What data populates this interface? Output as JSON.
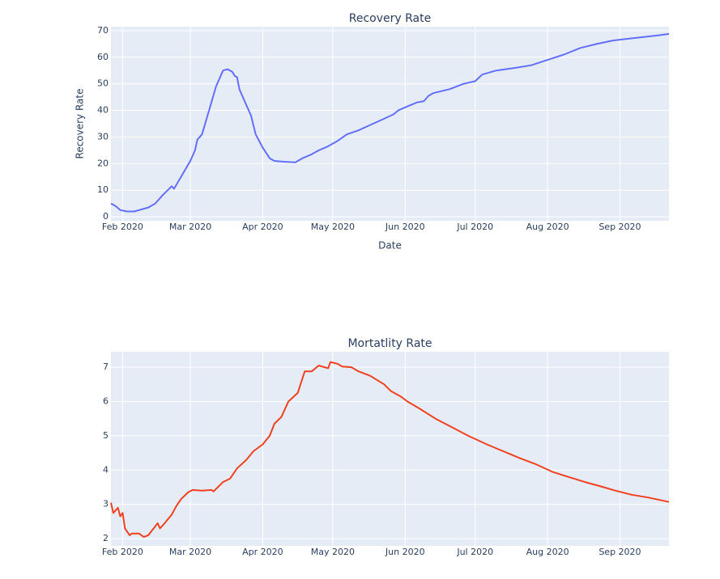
{
  "chart_data": [
    {
      "type": "line",
      "title": "Recovery Rate",
      "x_label": "Date",
      "y_label": "Recovery Rate",
      "color": "#636efa",
      "x": [
        "2020-01-27",
        "2020-01-29",
        "2020-01-31",
        "2020-02-03",
        "2020-02-06",
        "2020-02-08",
        "2020-02-12",
        "2020-02-15",
        "2020-02-18",
        "2020-02-22",
        "2020-02-23",
        "2020-02-26",
        "2020-03-01",
        "2020-03-03",
        "2020-03-04",
        "2020-03-06",
        "2020-03-09",
        "2020-03-12",
        "2020-03-15",
        "2020-03-17",
        "2020-03-19",
        "2020-03-20",
        "2020-03-21",
        "2020-03-22",
        "2020-03-24",
        "2020-03-27",
        "2020-03-29",
        "2020-04-01",
        "2020-04-04",
        "2020-04-06",
        "2020-04-10",
        "2020-04-15",
        "2020-04-18",
        "2020-04-22",
        "2020-04-25",
        "2020-04-29",
        "2020-05-03",
        "2020-05-07",
        "2020-05-12",
        "2020-05-17",
        "2020-05-22",
        "2020-05-27",
        "2020-05-29",
        "2020-06-02",
        "2020-06-06",
        "2020-06-09",
        "2020-06-11",
        "2020-06-13",
        "2020-06-20",
        "2020-06-26",
        "2020-07-01",
        "2020-07-04",
        "2020-07-10",
        "2020-07-18",
        "2020-07-25",
        "2020-08-01",
        "2020-08-08",
        "2020-08-15",
        "2020-08-22",
        "2020-08-29",
        "2020-09-05",
        "2020-09-12",
        "2020-09-18",
        "2020-09-22"
      ],
      "values": [
        5,
        4,
        2.5,
        2,
        2,
        2.5,
        3.5,
        5,
        8,
        11.5,
        10.5,
        15,
        21,
        25,
        29,
        31,
        40,
        49,
        55,
        55.5,
        54.5,
        53,
        52.5,
        48,
        44,
        38,
        31,
        26,
        22,
        21,
        20.7,
        20.5,
        22,
        23.5,
        25,
        26.5,
        28.5,
        31,
        32.5,
        34.5,
        36.5,
        38.5,
        40,
        41.5,
        43,
        43.5,
        45.5,
        46.5,
        48,
        50,
        51,
        53.5,
        55,
        56,
        57,
        59,
        61,
        63.5,
        65,
        66.3,
        67,
        67.7,
        68.3,
        68.8
      ],
      "xlim": [
        "2020-01-27",
        "2020-09-22"
      ],
      "xticks": [
        {
          "value": "2020-02-01",
          "label": "Feb 2020"
        },
        {
          "value": "2020-03-01",
          "label": "Mar 2020"
        },
        {
          "value": "2020-04-01",
          "label": "Apr 2020"
        },
        {
          "value": "2020-05-01",
          "label": "May 2020"
        },
        {
          "value": "2020-06-01",
          "label": "Jun 2020"
        },
        {
          "value": "2020-07-01",
          "label": "Jul 2020"
        },
        {
          "value": "2020-08-01",
          "label": "Aug 2020"
        },
        {
          "value": "2020-09-01",
          "label": "Sep 2020"
        }
      ],
      "ylim": [
        -1.5,
        71.5
      ],
      "yticks": [
        0,
        10,
        20,
        30,
        40,
        50,
        60,
        70
      ],
      "grid": true
    },
    {
      "type": "line",
      "title": "Mortatlity Rate",
      "color": "#f0401f",
      "x": [
        "2020-01-27",
        "2020-01-28",
        "2020-01-30",
        "2020-01-31",
        "2020-02-01",
        "2020-02-02",
        "2020-02-04",
        "2020-02-05",
        "2020-02-08",
        "2020-02-10",
        "2020-02-12",
        "2020-02-16",
        "2020-02-17",
        "2020-02-19",
        "2020-02-22",
        "2020-02-24",
        "2020-02-26",
        "2020-02-29",
        "2020-03-02",
        "2020-03-06",
        "2020-03-10",
        "2020-03-11",
        "2020-03-15",
        "2020-03-18",
        "2020-03-21",
        "2020-03-25",
        "2020-03-28",
        "2020-04-01",
        "2020-04-04",
        "2020-04-06",
        "2020-04-09",
        "2020-04-12",
        "2020-04-16",
        "2020-04-19",
        "2020-04-22",
        "2020-04-25",
        "2020-04-29",
        "2020-04-30",
        "2020-05-03",
        "2020-05-05",
        "2020-05-09",
        "2020-05-12",
        "2020-05-17",
        "2020-05-23",
        "2020-05-26",
        "2020-05-30",
        "2020-06-02",
        "2020-06-07",
        "2020-06-14",
        "2020-06-21",
        "2020-06-28",
        "2020-07-06",
        "2020-07-13",
        "2020-07-20",
        "2020-07-27",
        "2020-08-03",
        "2020-08-10",
        "2020-08-17",
        "2020-08-24",
        "2020-08-30",
        "2020-09-06",
        "2020-09-13",
        "2020-09-22"
      ],
      "values": [
        3.05,
        2.75,
        2.9,
        2.65,
        2.75,
        2.3,
        2.1,
        2.15,
        2.15,
        2.05,
        2.1,
        2.45,
        2.3,
        2.45,
        2.7,
        2.95,
        3.15,
        3.35,
        3.42,
        3.4,
        3.42,
        3.38,
        3.65,
        3.75,
        4.05,
        4.3,
        4.55,
        4.75,
        5.0,
        5.35,
        5.55,
        6.0,
        6.25,
        6.88,
        6.88,
        7.05,
        6.97,
        7.15,
        7.1,
        7.02,
        7.0,
        6.88,
        6.75,
        6.5,
        6.3,
        6.15,
        6.0,
        5.8,
        5.5,
        5.25,
        5.0,
        4.75,
        4.55,
        4.35,
        4.17,
        3.95,
        3.8,
        3.65,
        3.52,
        3.4,
        3.28,
        3.2,
        3.07
      ],
      "xlim": [
        "2020-01-27",
        "2020-09-22"
      ],
      "xticks": [
        {
          "value": "2020-02-01",
          "label": "Feb 2020"
        },
        {
          "value": "2020-03-01",
          "label": "Mar 2020"
        },
        {
          "value": "2020-04-01",
          "label": "Apr 2020"
        },
        {
          "value": "2020-05-01",
          "label": "May 2020"
        },
        {
          "value": "2020-06-01",
          "label": "Jun 2020"
        },
        {
          "value": "2020-07-01",
          "label": "Jul 2020"
        },
        {
          "value": "2020-08-01",
          "label": "Aug 2020"
        },
        {
          "value": "2020-09-01",
          "label": "Sep 2020"
        }
      ],
      "ylim": [
        1.79,
        7.45
      ],
      "yticks": [
        2,
        3,
        4,
        5,
        6,
        7
      ],
      "grid": true
    }
  ]
}
